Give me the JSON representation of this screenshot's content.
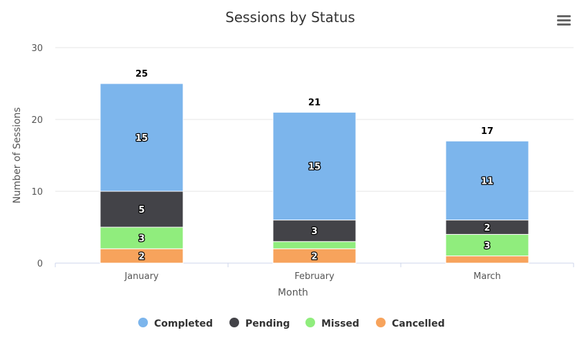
{
  "chart_data": {
    "type": "bar",
    "stacked": true,
    "title": "Sessions by Status",
    "xlabel": "Month",
    "ylabel": "Number of Sessions",
    "categories": [
      "January",
      "February",
      "March"
    ],
    "ylim": [
      0,
      30
    ],
    "yticks": [
      "0",
      "10",
      "20",
      "30"
    ],
    "grid": true,
    "legend_position": "bottom",
    "series": [
      {
        "name": "Completed",
        "color": "#7cb5ec",
        "values": [
          15,
          15,
          11
        ]
      },
      {
        "name": "Pending",
        "color": "#434348",
        "values": [
          5,
          3,
          2
        ]
      },
      {
        "name": "Missed",
        "color": "#90ed7d",
        "values": [
          3,
          1,
          3
        ]
      },
      {
        "name": "Cancelled",
        "color": "#f7a35c",
        "values": [
          2,
          2,
          1
        ]
      }
    ],
    "totals": [
      25,
      21,
      17
    ],
    "data_labels_shown": {
      "Completed": [
        "15",
        "15",
        "11"
      ],
      "Pending": [
        "5",
        "3",
        "2"
      ],
      "Missed": [
        "3",
        "",
        "3"
      ],
      "Cancelled": [
        "2",
        "2",
        ""
      ]
    }
  },
  "toolbar": {
    "menu_icon": "hamburger-menu-icon"
  }
}
